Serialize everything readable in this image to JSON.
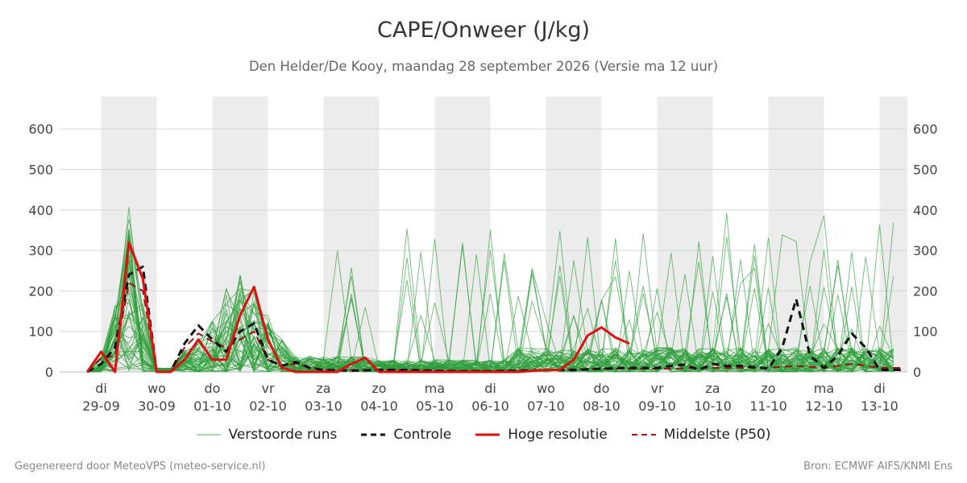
{
  "header": {
    "title": "CAPE/Onweer (J/kg)",
    "subtitle": "Den Helder/De Kooy, maandag 28 september 2026 (Versie ma 12 uur)"
  },
  "footer": {
    "left": "Gegenereerd door MeteoVPS (meteo-service.nl)",
    "right": "Bron: ECMWF AIFS/KNMI Ens"
  },
  "colors": {
    "ensemble": "#2e9e3a",
    "control": "#111111",
    "highres": "#e01010",
    "median": "#a01010",
    "shading": "#ececec",
    "grid": "#d8d8d8"
  },
  "legend": [
    {
      "label": "Verstoorde runs",
      "style": "thin-green"
    },
    {
      "label": "Controle",
      "style": "dashed-black"
    },
    {
      "label": "Hoge resolutie",
      "style": "solid-red"
    },
    {
      "label": "Middelste (P50)",
      "style": "dashed-darkred"
    }
  ],
  "chart_data": {
    "type": "line",
    "ylim": [
      0,
      680
    ],
    "yticks": [
      0,
      100,
      200,
      300,
      400,
      500,
      600
    ],
    "x_unit": "days",
    "xlim": [
      -0.7,
      14.45
    ],
    "xticks": [
      {
        "day": "di",
        "date": "29-09"
      },
      {
        "day": "wo",
        "date": "30-09"
      },
      {
        "day": "do",
        "date": "01-10"
      },
      {
        "day": "vr",
        "date": "02-10"
      },
      {
        "day": "za",
        "date": "03-10"
      },
      {
        "day": "zo",
        "date": "04-10"
      },
      {
        "day": "ma",
        "date": "05-10"
      },
      {
        "day": "di",
        "date": "06-10"
      },
      {
        "day": "wo",
        "date": "07-10"
      },
      {
        "day": "do",
        "date": "08-10"
      },
      {
        "day": "vr",
        "date": "09-10"
      },
      {
        "day": "za",
        "date": "10-10"
      },
      {
        "day": "zo",
        "date": "11-10"
      },
      {
        "day": "ma",
        "date": "12-10"
      },
      {
        "day": "di",
        "date": "13-10"
      }
    ],
    "shaded_day_indices": [
      0,
      2,
      4,
      6,
      8,
      10,
      12,
      14
    ],
    "series": [
      {
        "name": "Controle",
        "points": [
          [
            -0.25,
            0
          ],
          [
            0,
            20
          ],
          [
            0.25,
            60
          ],
          [
            0.5,
            240
          ],
          [
            0.75,
            260
          ],
          [
            1,
            0
          ],
          [
            1.25,
            0
          ],
          [
            1.5,
            70
          ],
          [
            1.75,
            115
          ],
          [
            2,
            80
          ],
          [
            2.25,
            50
          ],
          [
            2.5,
            100
          ],
          [
            2.75,
            120
          ],
          [
            3,
            30
          ],
          [
            3.25,
            15
          ],
          [
            3.5,
            25
          ],
          [
            3.75,
            10
          ],
          [
            4,
            5
          ],
          [
            4.5,
            3
          ],
          [
            5,
            5
          ],
          [
            5.5,
            5
          ],
          [
            6,
            3
          ],
          [
            6.5,
            2
          ],
          [
            7,
            2
          ],
          [
            7.5,
            3
          ],
          [
            8,
            5
          ],
          [
            8.5,
            5
          ],
          [
            9,
            8
          ],
          [
            9.5,
            10
          ],
          [
            10,
            10
          ],
          [
            10.25,
            15
          ],
          [
            10.5,
            18
          ],
          [
            10.75,
            5
          ],
          [
            11,
            20
          ],
          [
            11.25,
            15
          ],
          [
            11.5,
            15
          ],
          [
            12,
            8
          ],
          [
            12.25,
            60
          ],
          [
            12.5,
            180
          ],
          [
            12.75,
            40
          ],
          [
            13,
            10
          ],
          [
            13.25,
            40
          ],
          [
            13.5,
            95
          ],
          [
            13.75,
            60
          ],
          [
            14,
            5
          ],
          [
            14.45,
            5
          ]
        ]
      },
      {
        "name": "Hoge resolutie",
        "points": [
          [
            -0.25,
            0
          ],
          [
            0,
            50
          ],
          [
            0.25,
            0
          ],
          [
            0.5,
            320
          ],
          [
            0.75,
            230
          ],
          [
            1,
            0
          ],
          [
            1.25,
            0
          ],
          [
            1.5,
            30
          ],
          [
            1.75,
            80
          ],
          [
            2,
            30
          ],
          [
            2.25,
            30
          ],
          [
            2.5,
            140
          ],
          [
            2.75,
            210
          ],
          [
            3,
            80
          ],
          [
            3.25,
            10
          ],
          [
            3.5,
            0
          ],
          [
            4,
            0
          ],
          [
            4.25,
            0
          ],
          [
            4.5,
            20
          ],
          [
            4.75,
            35
          ],
          [
            5,
            0
          ],
          [
            5.5,
            0
          ],
          [
            6,
            0
          ],
          [
            6.5,
            0
          ],
          [
            7,
            0
          ],
          [
            7.5,
            0
          ],
          [
            8,
            5
          ],
          [
            8.25,
            5
          ],
          [
            8.5,
            30
          ],
          [
            8.75,
            90
          ],
          [
            9,
            110
          ],
          [
            9.25,
            85
          ],
          [
            9.5,
            70
          ]
        ]
      },
      {
        "name": "Middelste (P50)",
        "points": [
          [
            -0.25,
            0
          ],
          [
            0,
            35
          ],
          [
            0.25,
            40
          ],
          [
            0.5,
            220
          ],
          [
            0.75,
            200
          ],
          [
            1,
            0
          ],
          [
            1.25,
            0
          ],
          [
            1.5,
            60
          ],
          [
            1.75,
            95
          ],
          [
            2,
            75
          ],
          [
            2.25,
            60
          ],
          [
            2.5,
            80
          ],
          [
            2.75,
            100
          ],
          [
            3,
            30
          ],
          [
            3.25,
            15
          ],
          [
            3.5,
            20
          ],
          [
            4,
            5
          ],
          [
            5,
            5
          ],
          [
            6,
            3
          ],
          [
            7,
            3
          ],
          [
            8,
            5
          ],
          [
            9,
            8
          ],
          [
            10,
            8
          ],
          [
            11,
            10
          ],
          [
            12,
            10
          ],
          [
            12.5,
            15
          ],
          [
            13,
            10
          ],
          [
            13.5,
            20
          ],
          [
            14,
            10
          ],
          [
            14.45,
            10
          ]
        ]
      }
    ]
  }
}
